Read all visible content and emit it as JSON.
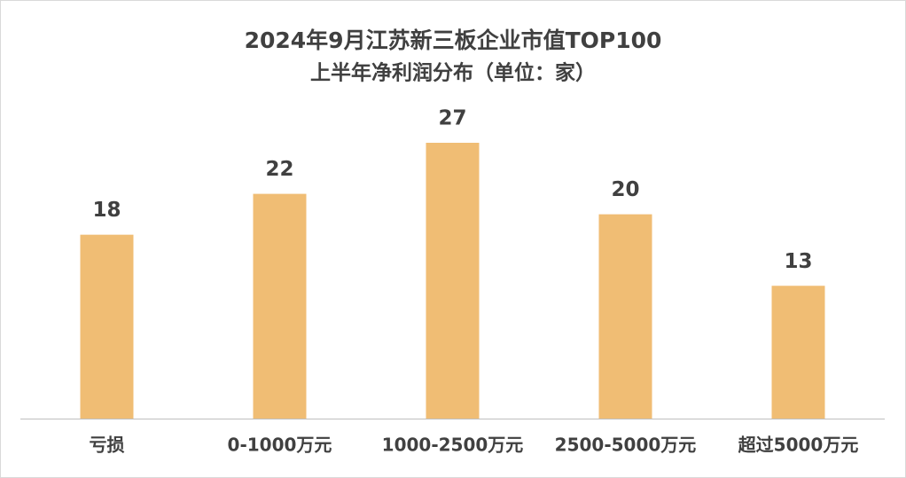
{
  "chart_data": {
    "type": "bar",
    "title": "2024年9月江苏新三板企业市值TOP100",
    "subtitle": "上半年净利润分布（单位：家）",
    "categories": [
      "亏损",
      "0-1000万元",
      "1000-2500万元",
      "2500-5000万元",
      "超过5000万元"
    ],
    "values": [
      18,
      22,
      27,
      20,
      13
    ],
    "color": "#f0bd74"
  }
}
